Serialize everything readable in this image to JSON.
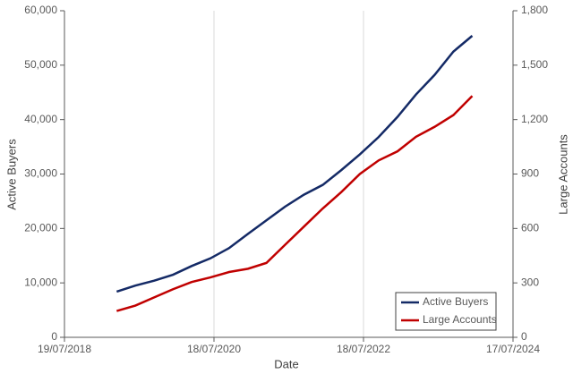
{
  "chart_data": {
    "type": "line",
    "x": [
      "2019-03-31",
      "2019-06-30",
      "2019-09-30",
      "2019-12-31",
      "2020-03-31",
      "2020-06-30",
      "2020-09-30",
      "2020-12-31",
      "2021-03-31",
      "2021-06-30",
      "2021-09-30",
      "2021-12-31",
      "2022-03-31",
      "2022-06-30",
      "2022-09-30",
      "2022-12-31",
      "2023-03-31",
      "2023-06-30",
      "2023-09-30",
      "2023-12-31"
    ],
    "series": [
      {
        "name": "Active Buyers",
        "color": "#142a66",
        "values": [
          8400,
          9500,
          10400,
          11500,
          13100,
          14500,
          16400,
          19000,
          21500,
          24000,
          26200,
          28000,
          30700,
          33600,
          36800,
          40500,
          44600,
          48200,
          52500,
          55400
        ]
      },
      {
        "name": "Large Accounts",
        "color": "#c00000",
        "axis": "y2",
        "values": [
          145,
          175,
          220,
          265,
          305,
          330,
          360,
          378,
          410,
          510,
          610,
          710,
          800,
          900,
          975,
          1025,
          1105,
          1160,
          1225,
          1330
        ]
      }
    ],
    "xlabel": "Date",
    "ylabel": "Active Buyers",
    "y2label": "Large Accounts",
    "xlim": [
      "2018-07-19",
      "2024-07-17"
    ],
    "xticks": [
      {
        "value": "2018-07-19",
        "label": "19/07/2018"
      },
      {
        "value": "2020-07-18",
        "label": "18/07/2020"
      },
      {
        "value": "2022-07-18",
        "label": "18/07/2022"
      },
      {
        "value": "2024-07-17",
        "label": "17/07/2024"
      }
    ],
    "ylim": [
      0,
      60000
    ],
    "yticks": [
      0,
      {
        "value": 10000,
        "label": "10,000"
      },
      {
        "value": 20000,
        "label": "20,000"
      },
      {
        "value": 30000,
        "label": "30,000"
      },
      {
        "value": 40000,
        "label": "40,000"
      },
      {
        "value": 50000,
        "label": "50,000"
      },
      {
        "value": 60000,
        "label": "60,000"
      }
    ],
    "y2lim": [
      0,
      1800
    ],
    "y2ticks": [
      0,
      300,
      600,
      900,
      {
        "value": 1200,
        "label": "1,200"
      },
      {
        "value": 1500,
        "label": "1,500"
      },
      {
        "value": 1800,
        "label": "1,800"
      }
    ],
    "grid": "x",
    "legend": "lower right"
  }
}
